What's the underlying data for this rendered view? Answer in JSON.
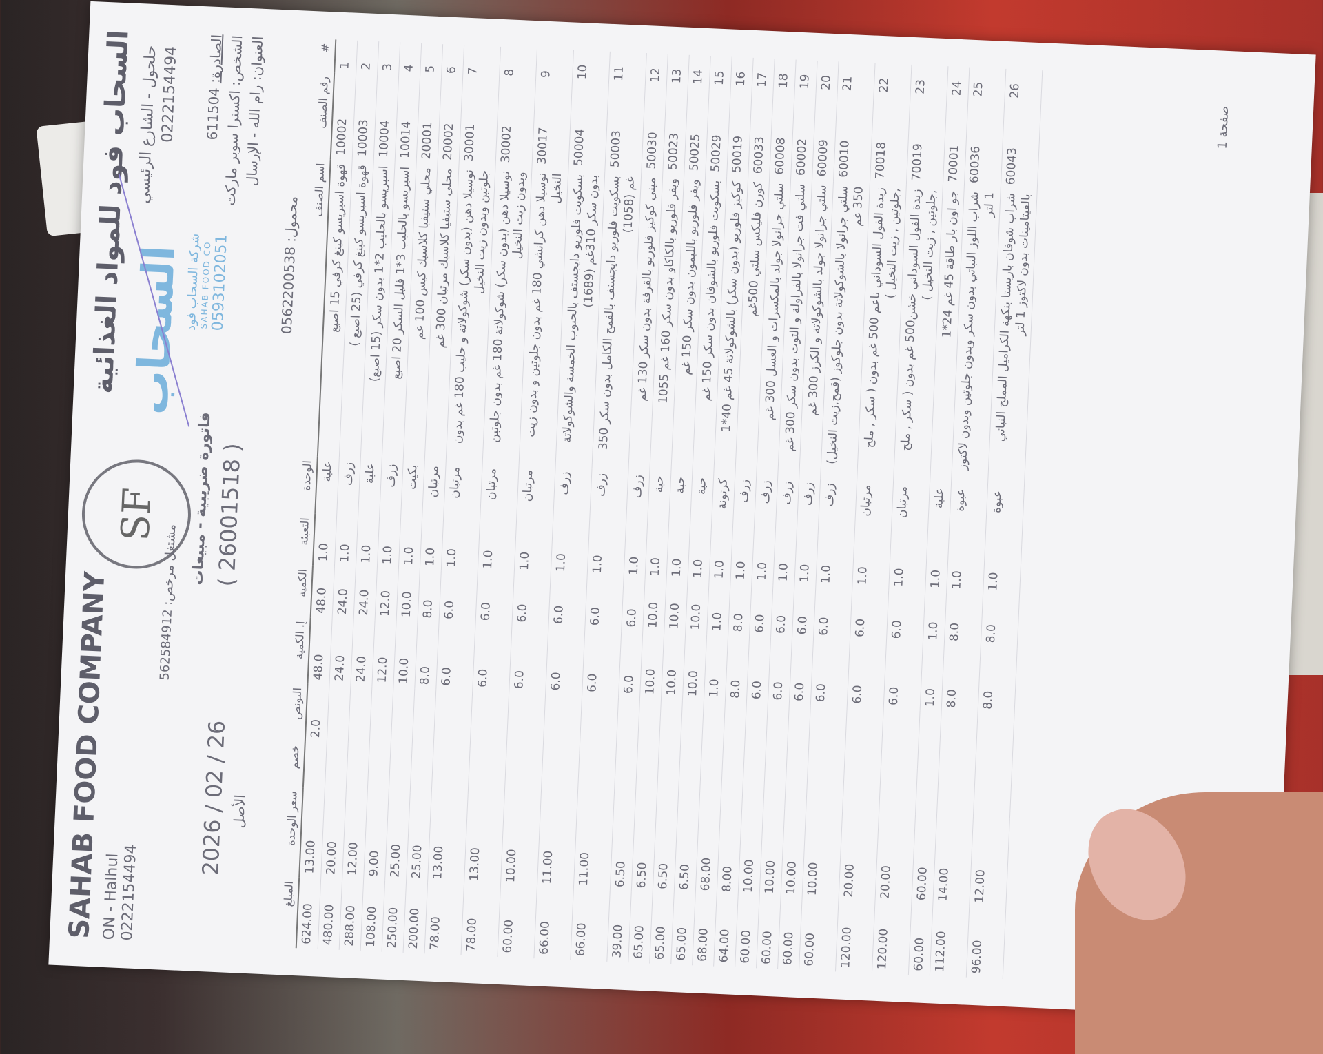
{
  "company": {
    "name_ar": "السحاب فود للمواد الغذائية",
    "address_ar": "حلحول - الشارع الرئيسي",
    "phone_ar": "0222154494",
    "name_en": "SAHAB FOOD COMPANY",
    "address_en": "ON - Halhul",
    "phone_en": "0222154494",
    "logo_text": "SF"
  },
  "stamp": {
    "big": "السحاب",
    "line1": "شركة السحاب فود",
    "line2": "SAHAB FOOD CO",
    "phone": "0593102051"
  },
  "invoice": {
    "license": "مشتغل مرخص: 562584912",
    "title": "فاتورة ضريبية - مبيعات",
    "number": "( 26001518 )",
    "date": "2026 / 02 / 26",
    "copy": "الأصل"
  },
  "customer": {
    "issued_label": "الصادرة:",
    "issued_no": "611504",
    "name": "الشخص: اكسترا سوبر ماركت",
    "address": "العنوان: رام الله - الإرسال",
    "mobile": "محمول: 0562200538"
  },
  "columns": [
    "#",
    "رقم الصنف",
    "اسم الصنف",
    "الوحدة",
    "التعبئة",
    "الكمية",
    "إ. الكمية",
    "البونص",
    "خصم",
    "سعر الوحدة",
    "المبلغ"
  ],
  "items": [
    {
      "n": "1",
      "code": "10002",
      "name": "قهوة اسبريسو كبنغ كرفي 15 اصبع",
      "unit": "علبة",
      "pack": "1.0",
      "qty": "48.0",
      "total_qty": "48.0",
      "bonus": "2.0",
      "discount": "",
      "price": "13.00",
      "amount": "624.00"
    },
    {
      "n": "2",
      "code": "10003",
      "name": "قهوة اسبريسو كبنغ كرفي (25 اصبع )",
      "unit": "زرف",
      "pack": "1.0",
      "qty": "24.0",
      "total_qty": "24.0",
      "bonus": "",
      "discount": "",
      "price": "20.00",
      "amount": "480.00"
    },
    {
      "n": "3",
      "code": "10004",
      "name": "اسبريسو بالحليب 2*1 بدون سكر (15 اصبع)",
      "unit": "علبة",
      "pack": "1.0",
      "qty": "24.0",
      "total_qty": "24.0",
      "bonus": "",
      "discount": "",
      "price": "12.00",
      "amount": "288.00"
    },
    {
      "n": "4",
      "code": "10014",
      "name": "اسبريسو بالحليب 3*1 قليل السكر 20 اصبع",
      "unit": "زرف",
      "pack": "1.0",
      "qty": "12.0",
      "total_qty": "12.0",
      "bonus": "",
      "discount": "",
      "price": "9.00",
      "amount": "108.00"
    },
    {
      "n": "5",
      "code": "20001",
      "name": "محلي ستيفيا كلاسيك كيس 100 غم",
      "unit": "بكيت",
      "pack": "1.0",
      "qty": "10.0",
      "total_qty": "10.0",
      "bonus": "",
      "discount": "",
      "price": "25.00",
      "amount": "250.00"
    },
    {
      "n": "6",
      "code": "20002",
      "name": "محلي ستيفيا كلاسيك مرتبان 300 غم",
      "unit": "مرتبان",
      "pack": "1.0",
      "qty": "8.0",
      "total_qty": "8.0",
      "bonus": "",
      "discount": "",
      "price": "25.00",
      "amount": "200.00"
    },
    {
      "n": "7",
      "code": "30001",
      "name": "نوسيلا دهن (بدون سكر) شوكولاتة و حليب 180 غم بدون جلوتين وبدون زيت النخيل",
      "unit": "مرتبان",
      "pack": "1.0",
      "qty": "6.0",
      "total_qty": "6.0",
      "bonus": "",
      "discount": "",
      "price": "13.00",
      "amount": "78.00"
    },
    {
      "n": "8",
      "code": "30002",
      "name": "نوسيلا دهن (بدون سكر) شوكولاتة 180 غم بدون جلوتين وبدون زيت النخيل",
      "unit": "مرتبان",
      "pack": "1.0",
      "qty": "6.0",
      "total_qty": "6.0",
      "bonus": "",
      "discount": "",
      "price": "13.00",
      "amount": "78.00"
    },
    {
      "n": "9",
      "code": "30017",
      "name": "نوسيلا دهن كرانشي 180 غم بدون جلوتين و بدون زيت النخيل",
      "unit": "مرتبان",
      "pack": "1.0",
      "qty": "6.0",
      "total_qty": "6.0",
      "bonus": "",
      "discount": "",
      "price": "10.00",
      "amount": "60.00"
    },
    {
      "n": "10",
      "code": "50004",
      "name": "بسكويت فلوريو دايجستف بالحبوب الخمسة والشوكولاتة بدون سكر 310غم (1689)",
      "unit": "زرف",
      "pack": "1.0",
      "qty": "6.0",
      "total_qty": "6.0",
      "bonus": "",
      "discount": "",
      "price": "11.00",
      "amount": "66.00"
    },
    {
      "n": "11",
      "code": "50003",
      "name": "بسكويت فلوريو دايجستف بالقمح الكامل بدون سكر 350 غم (1058)",
      "unit": "زرف",
      "pack": "1.0",
      "qty": "6.0",
      "total_qty": "6.0",
      "bonus": "",
      "discount": "",
      "price": "11.00",
      "amount": "66.00"
    },
    {
      "n": "12",
      "code": "50030",
      "name": "ميني كوكيز فلوريو بالقرفة بدون سكر 130 غم",
      "unit": "زرف",
      "pack": "1.0",
      "qty": "6.0",
      "total_qty": "6.0",
      "bonus": "",
      "discount": "",
      "price": "6.50",
      "amount": "39.00"
    },
    {
      "n": "13",
      "code": "50023",
      "name": "ويفر فلوريو بالكاكاو بدون سكر 160 غم 1055",
      "unit": "حبة",
      "pack": "1.0",
      "qty": "10.0",
      "total_qty": "10.0",
      "bonus": "",
      "discount": "",
      "price": "6.50",
      "amount": "65.00"
    },
    {
      "n": "14",
      "code": "50025",
      "name": "ويفر فلوريو بالليمون بدون سكر 150 غم",
      "unit": "حبة",
      "pack": "1.0",
      "qty": "10.0",
      "total_qty": "10.0",
      "bonus": "",
      "discount": "",
      "price": "6.50",
      "amount": "65.00"
    },
    {
      "n": "15",
      "code": "50029",
      "name": "بسكويت فلوريو بالشوفان بدون سكر 150 غم",
      "unit": "حبة",
      "pack": "1.0",
      "qty": "10.0",
      "total_qty": "10.0",
      "bonus": "",
      "discount": "",
      "price": "6.50",
      "amount": "65.00"
    },
    {
      "n": "16",
      "code": "50019",
      "name": "كوكيز فلوريو (بدون سكر) بالشوكولاتة 45 غم 40*1",
      "unit": "كرتونة",
      "pack": "1.0",
      "qty": "1.0",
      "total_qty": "1.0",
      "bonus": "",
      "discount": "",
      "price": "68.00",
      "amount": "68.00"
    },
    {
      "n": "17",
      "code": "60033",
      "name": "كورن فليكس سلتي 500غم",
      "unit": "زرف",
      "pack": "1.0",
      "qty": "8.0",
      "total_qty": "8.0",
      "bonus": "",
      "discount": "",
      "price": "8.00",
      "amount": "64.00"
    },
    {
      "n": "18",
      "code": "60008",
      "name": "سلتي جرانولا جولد بالمكسرات و العسل 300 غم",
      "unit": "زرف",
      "pack": "1.0",
      "qty": "6.0",
      "total_qty": "6.0",
      "bonus": "",
      "discount": "",
      "price": "10.00",
      "amount": "60.00"
    },
    {
      "n": "19",
      "code": "60002",
      "name": "سلتي فت جرانولا بالفراولة و التوت بدون سكر 300 غم",
      "unit": "زرف",
      "pack": "1.0",
      "qty": "6.0",
      "total_qty": "6.0",
      "bonus": "",
      "discount": "",
      "price": "10.00",
      "amount": "60.00"
    },
    {
      "n": "20",
      "code": "60009",
      "name": "سلتي جرانولا جولد بالشوكولاتة و الكرز 300 غم",
      "unit": "زرف",
      "pack": "1.0",
      "qty": "6.0",
      "total_qty": "6.0",
      "bonus": "",
      "discount": "",
      "price": "10.00",
      "amount": "60.00"
    },
    {
      "n": "21",
      "code": "60010",
      "name": "سلتي جرانولا بالشوكولاتة بدون جلوكوز (قمح,زيت النخيل) 350 غم",
      "unit": "زرف",
      "pack": "1.0",
      "qty": "6.0",
      "total_qty": "6.0",
      "bonus": "",
      "discount": "",
      "price": "10.00",
      "amount": "60.00"
    },
    {
      "n": "22",
      "code": "70018",
      "name": "زبدة الفول السوداني ناعم 500 غم بدون ( سكر , ملح ,جلوتين , زيت النخيل )",
      "unit": "مرتبان",
      "pack": "1.0",
      "qty": "6.0",
      "total_qty": "6.0",
      "bonus": "",
      "discount": "",
      "price": "20.00",
      "amount": "120.00"
    },
    {
      "n": "23",
      "code": "70019",
      "name": "زبدة الفول السوداني خشن500 غم بدون ( سكر , ملح ,جلوتين , زيت النخيل )",
      "unit": "مرتبان",
      "pack": "1.0",
      "qty": "6.0",
      "total_qty": "6.0",
      "bonus": "",
      "discount": "",
      "price": "20.00",
      "amount": "120.00"
    },
    {
      "n": "24",
      "code": "70001",
      "name": "جو اون بار طاقة 45 غم 24*1",
      "unit": "علبة",
      "pack": "1.0",
      "qty": "1.0",
      "total_qty": "1.0",
      "bonus": "",
      "discount": "",
      "price": "60.00",
      "amount": "60.00"
    },
    {
      "n": "25",
      "code": "60036",
      "name": "شراب اللوز النباتي بدون سكر وبدون جلوتين وبدون لاكتوز 1 لتر",
      "unit": "عبوة",
      "pack": "1.0",
      "qty": "8.0",
      "total_qty": "8.0",
      "bonus": "",
      "discount": "",
      "price": "14.00",
      "amount": "112.00"
    },
    {
      "n": "26",
      "code": "60043",
      "name": "شراب شوفان باريستا بنكهة الكراميل المملح النباتي بالفيتامينات بدون لاكتوز 1 لتر",
      "unit": "عبوة",
      "pack": "1.0",
      "qty": "8.0",
      "total_qty": "8.0",
      "bonus": "",
      "discount": "",
      "price": "12.00",
      "amount": "96.00"
    }
  ],
  "footer": {
    "page": "صفحة 1"
  },
  "colors": {
    "ink": "#6c6c78",
    "stamp": "#7fb7de",
    "signature": "#8a7fd0",
    "paper": "#f4f4f6"
  }
}
